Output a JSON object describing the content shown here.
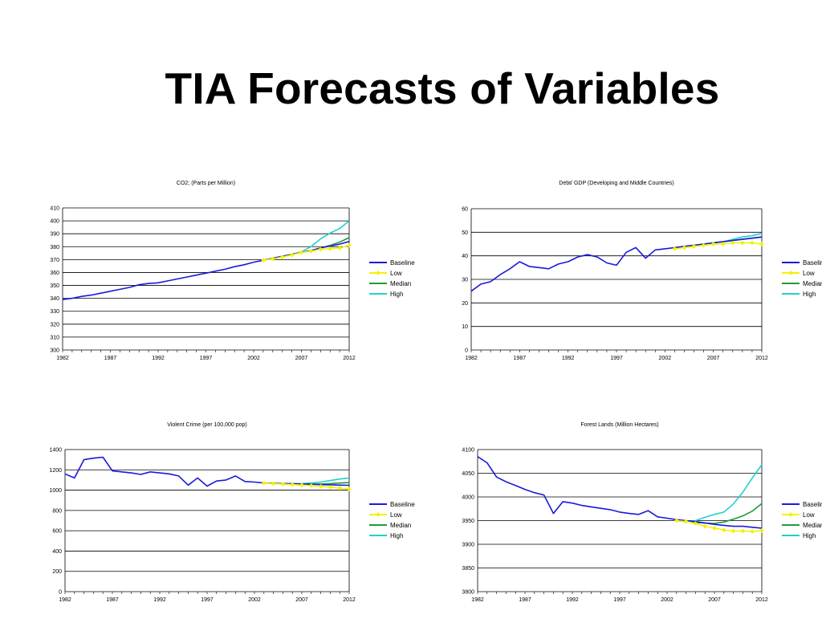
{
  "slide": {
    "title": "TIA Forecasts of Variables"
  },
  "colors": {
    "baseline": "#1a1adb",
    "low": "#f2f200",
    "median": "#1f9b3a",
    "high": "#22d0d0",
    "grid": "#000000"
  },
  "legend_labels": [
    "Baseline",
    "Low",
    "Median",
    "High"
  ],
  "chart_data": [
    {
      "type": "line",
      "title": "CO2; (Parts per Million)",
      "xlabel": "",
      "ylabel": "",
      "xlim": [
        1982,
        2012
      ],
      "xticks": [
        "1982",
        "1987",
        "1992",
        "1997",
        "2002",
        "2007",
        "2012"
      ],
      "ylim": [
        300,
        410
      ],
      "yticks": [
        "300",
        "310",
        "320",
        "330",
        "340",
        "350",
        "360",
        "370",
        "380",
        "390",
        "400",
        "410"
      ],
      "grid": true,
      "legend": "right",
      "series": [
        {
          "name": "Baseline",
          "x": [
            1982,
            1983,
            1984,
            1985,
            1986,
            1987,
            1988,
            1989,
            1990,
            1991,
            1992,
            1993,
            1994,
            1995,
            1996,
            1997,
            1998,
            1999,
            2000,
            2001,
            2002,
            2003
          ],
          "y": [
            339,
            340,
            341.5,
            342.5,
            344,
            345.5,
            347,
            348.5,
            350.5,
            351.5,
            352,
            353.5,
            355,
            356.5,
            358,
            359.5,
            361,
            362.5,
            364.5,
            366,
            368,
            369.5
          ]
        },
        {
          "name": "Baseline",
          "x": [
            2003,
            2004,
            2005,
            2006,
            2007,
            2008,
            2009,
            2010,
            2011,
            2012
          ],
          "y": [
            369.5,
            371,
            372.5,
            374,
            375.5,
            377,
            379,
            380.5,
            382,
            384
          ]
        },
        {
          "name": "Low",
          "markers": true,
          "x": [
            2003,
            2004,
            2005,
            2006,
            2007,
            2008,
            2009,
            2010,
            2011,
            2012
          ],
          "y": [
            369.5,
            370.5,
            372,
            373.5,
            375.5,
            376.5,
            378,
            378.5,
            379,
            381
          ]
        },
        {
          "name": "Median",
          "x": [
            2003,
            2004,
            2005,
            2006,
            2007,
            2008,
            2009,
            2010,
            2011,
            2012
          ],
          "y": [
            369.5,
            371,
            372.5,
            374,
            375.5,
            377,
            379,
            381,
            383.5,
            387
          ]
        },
        {
          "name": "High",
          "x": [
            2003,
            2004,
            2005,
            2006,
            2007,
            2008,
            2009,
            2010,
            2011,
            2012
          ],
          "y": [
            369.5,
            371,
            372.5,
            374,
            376,
            380,
            386,
            390.5,
            394,
            400
          ]
        }
      ]
    },
    {
      "type": "line",
      "title": "Debt/ GDP (Developing and Middle Countries)",
      "xlabel": "",
      "ylabel": "",
      "xlim": [
        1982,
        2012
      ],
      "xticks": [
        "1982",
        "1987",
        "1992",
        "1997",
        "2002",
        "2007",
        "2012"
      ],
      "ylim": [
        0,
        60
      ],
      "yticks": [
        "0",
        "10",
        "20",
        "30",
        "40",
        "50",
        "60"
      ],
      "grid": true,
      "legend": "right",
      "series": [
        {
          "name": "Baseline",
          "x": [
            1982,
            1983,
            1984,
            1985,
            1986,
            1987,
            1988,
            1989,
            1990,
            1991,
            1992,
            1993,
            1994,
            1995,
            1996,
            1997,
            1998,
            1999,
            2000,
            2001,
            2002,
            2003
          ],
          "y": [
            25,
            28,
            29,
            32,
            34.5,
            37.5,
            35.5,
            35,
            34.5,
            36.5,
            37.5,
            39.5,
            40.5,
            39.5,
            37,
            36,
            41.5,
            43.5,
            39,
            42.5,
            43,
            43.5
          ]
        },
        {
          "name": "Baseline",
          "x": [
            2003,
            2004,
            2005,
            2006,
            2007,
            2008,
            2009,
            2010,
            2011,
            2012
          ],
          "y": [
            43.5,
            44,
            44.5,
            45,
            45.5,
            46,
            46.5,
            47,
            47.5,
            48
          ]
        },
        {
          "name": "Low",
          "markers": true,
          "x": [
            2003,
            2004,
            2005,
            2006,
            2007,
            2008,
            2009,
            2010,
            2011,
            2012
          ],
          "y": [
            43,
            43.5,
            44,
            44.5,
            45,
            45,
            45.5,
            45.5,
            45.5,
            45
          ]
        },
        {
          "name": "Median",
          "x": [
            2003,
            2004,
            2005,
            2006,
            2007,
            2008,
            2009,
            2010,
            2011,
            2012
          ],
          "y": [
            43.5,
            44,
            44.5,
            45,
            45.5,
            46,
            46.5,
            47,
            47.5,
            48
          ]
        },
        {
          "name": "High",
          "x": [
            2003,
            2004,
            2005,
            2006,
            2007,
            2008,
            2009,
            2010,
            2011,
            2012
          ],
          "y": [
            43.5,
            44,
            44.5,
            45,
            45.5,
            46,
            47,
            48,
            48.5,
            49.5
          ]
        }
      ]
    },
    {
      "type": "line",
      "title": "Violent Crime (per 100,000 pop)",
      "xlabel": "",
      "ylabel": "",
      "xlim": [
        1982,
        2012
      ],
      "xticks": [
        "1982",
        "1987",
        "1992",
        "1997",
        "2002",
        "2007",
        "2012"
      ],
      "ylim": [
        0,
        1400
      ],
      "yticks": [
        "0",
        "200",
        "400",
        "600",
        "800",
        "1000",
        "1200",
        "1400"
      ],
      "grid": true,
      "legend": "right",
      "series": [
        {
          "name": "Baseline",
          "x": [
            1982,
            1983,
            1984,
            1985,
            1986,
            1987,
            1988,
            1989,
            1990,
            1991,
            1992,
            1993,
            1994,
            1995,
            1996,
            1997,
            1998,
            1999,
            2000,
            2001,
            2002,
            2003
          ],
          "y": [
            1160,
            1120,
            1300,
            1315,
            1325,
            1190,
            1180,
            1170,
            1155,
            1180,
            1170,
            1160,
            1140,
            1050,
            1120,
            1040,
            1090,
            1100,
            1140,
            1085,
            1080,
            1070
          ]
        },
        {
          "name": "Baseline",
          "x": [
            2003,
            2004,
            2005,
            2006,
            2007,
            2008,
            2009,
            2010,
            2011,
            2012
          ],
          "y": [
            1070,
            1068,
            1065,
            1063,
            1060,
            1058,
            1055,
            1053,
            1050,
            1048
          ]
        },
        {
          "name": "Low",
          "markers": true,
          "x": [
            2003,
            2004,
            2005,
            2006,
            2007,
            2008,
            2009,
            2010,
            2011,
            2012
          ],
          "y": [
            1070,
            1065,
            1060,
            1055,
            1050,
            1045,
            1038,
            1030,
            1020,
            1010
          ]
        },
        {
          "name": "Median",
          "x": [
            2003,
            2004,
            2005,
            2006,
            2007,
            2008,
            2009,
            2010,
            2011,
            2012
          ],
          "y": [
            1070,
            1068,
            1065,
            1063,
            1060,
            1060,
            1060,
            1065,
            1070,
            1075
          ]
        },
        {
          "name": "High",
          "x": [
            2003,
            2004,
            2005,
            2006,
            2007,
            2008,
            2009,
            2010,
            2011,
            2012
          ],
          "y": [
            1070,
            1068,
            1065,
            1065,
            1065,
            1070,
            1080,
            1095,
            1110,
            1120
          ]
        }
      ]
    },
    {
      "type": "line",
      "title": "Forest Lands (Million Hectares)",
      "xlabel": "",
      "ylabel": "",
      "xlim": [
        1982,
        2012
      ],
      "xticks": [
        "1982",
        "1987",
        "1992",
        "1997",
        "2002",
        "2007",
        "2012"
      ],
      "ylim": [
        3800,
        4100
      ],
      "yticks": [
        "3800",
        "3850",
        "3900",
        "3950",
        "4000",
        "4050",
        "4100"
      ],
      "grid": true,
      "legend": "right",
      "series": [
        {
          "name": "Baseline",
          "x": [
            1982,
            1983,
            1984,
            1985,
            1986,
            1987,
            1988,
            1989,
            1990,
            1991,
            1992,
            1993,
            1994,
            1995,
            1996,
            1997,
            1998,
            1999,
            2000,
            2001,
            2002,
            2003
          ],
          "y": [
            4085,
            4072,
            4042,
            4032,
            4024,
            4016,
            4009,
            4004,
            3965,
            3990,
            3987,
            3982,
            3979,
            3976,
            3973,
            3968,
            3965,
            3963,
            3971,
            3958,
            3955,
            3952
          ]
        },
        {
          "name": "Baseline",
          "x": [
            2003,
            2004,
            2005,
            2006,
            2007,
            2008,
            2009,
            2010,
            2011,
            2012
          ],
          "y": [
            3952,
            3950,
            3948,
            3945,
            3942,
            3940,
            3938,
            3938,
            3936,
            3934
          ]
        },
        {
          "name": "Low",
          "markers": true,
          "x": [
            2003,
            2004,
            2005,
            2006,
            2007,
            2008,
            2009,
            2010,
            2011,
            2012
          ],
          "y": [
            3950,
            3948,
            3944,
            3938,
            3934,
            3930,
            3928,
            3928,
            3927,
            3929
          ]
        },
        {
          "name": "Median",
          "x": [
            2003,
            2004,
            2005,
            2006,
            2007,
            2008,
            2009,
            2010,
            2011,
            2012
          ],
          "y": [
            3950,
            3948,
            3946,
            3945,
            3944,
            3947,
            3953,
            3960,
            3970,
            3986
          ]
        },
        {
          "name": "High",
          "x": [
            2003,
            2004,
            2005,
            2006,
            2007,
            2008,
            2009,
            2010,
            2011,
            2012
          ],
          "y": [
            3950,
            3948,
            3950,
            3957,
            3963,
            3968,
            3985,
            4010,
            4040,
            4068
          ]
        }
      ]
    }
  ]
}
